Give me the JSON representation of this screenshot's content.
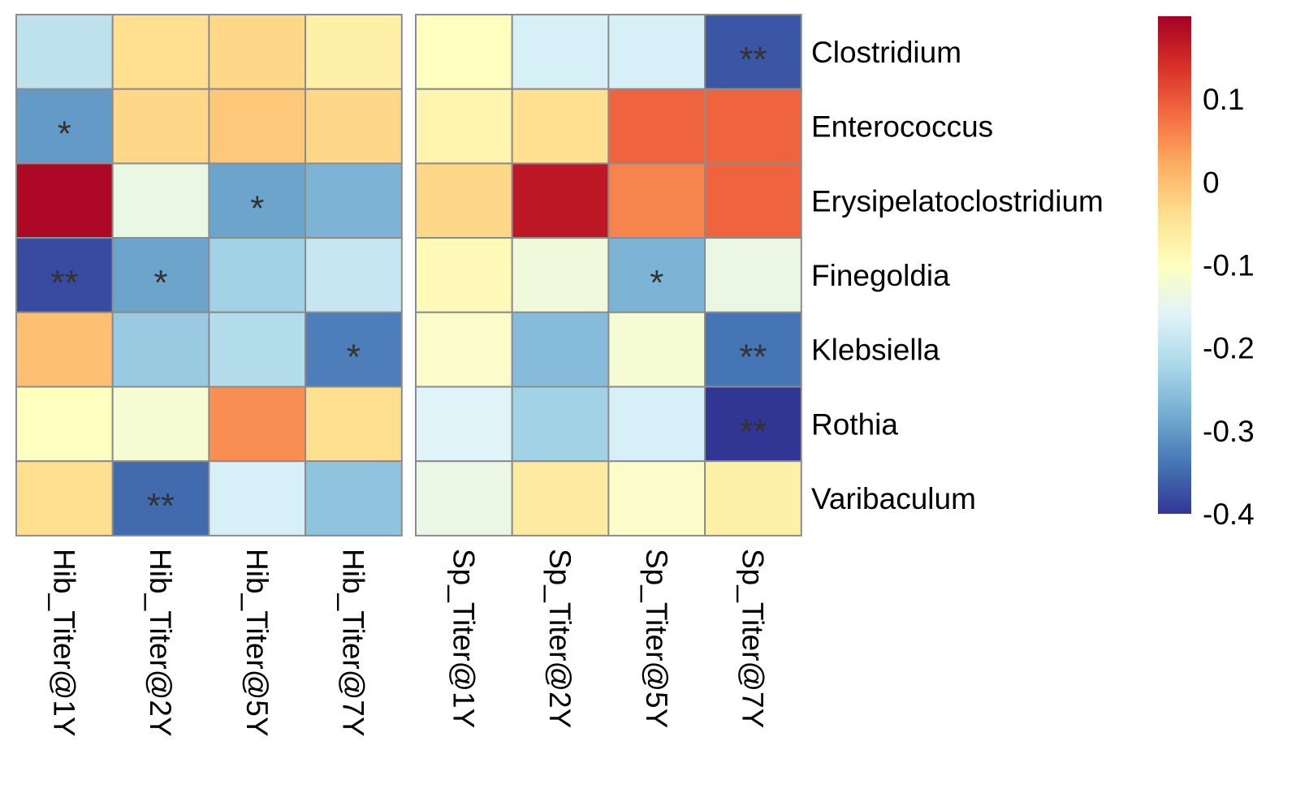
{
  "chart_data": {
    "type": "heatmap",
    "title": "",
    "rows": [
      "Clostridium",
      "Enterococcus",
      "Erysipelatoclostridium",
      "Finegoldia",
      "Klebsiella",
      "Rothia",
      "Varibaculum"
    ],
    "column_groups": [
      {
        "columns": [
          "Hib_Titer@1Y",
          "Hib_Titer@2Y",
          "Hib_Titer@5Y",
          "Hib_Titer@7Y"
        ],
        "values": [
          [
            -0.2,
            -0.04,
            -0.03,
            -0.07
          ],
          [
            -0.3,
            -0.03,
            -0.01,
            -0.03
          ],
          [
            0.19,
            -0.14,
            -0.29,
            -0.27
          ],
          [
            -0.38,
            -0.29,
            -0.23,
            -0.19
          ],
          [
            0.0,
            -0.24,
            -0.21,
            -0.33
          ],
          [
            -0.1,
            -0.12,
            0.05,
            -0.04
          ],
          [
            -0.04,
            -0.35,
            -0.17,
            -0.25
          ]
        ],
        "significance": [
          [
            "",
            "",
            "",
            ""
          ],
          [
            "*",
            "",
            "",
            ""
          ],
          [
            "",
            "",
            "*",
            ""
          ],
          [
            "**",
            "*",
            "",
            ""
          ],
          [
            "",
            "",
            "",
            "*"
          ],
          [
            "",
            "",
            "",
            ""
          ],
          [
            "",
            "**",
            "",
            ""
          ]
        ]
      },
      {
        "columns": [
          "Sp_Titer@1Y",
          "Sp_Titer@2Y",
          "Sp_Titer@5Y",
          "Sp_Titer@7Y"
        ],
        "values": [
          [
            -0.1,
            -0.17,
            -0.17,
            -0.37
          ],
          [
            -0.08,
            -0.04,
            0.09,
            0.09
          ],
          [
            -0.03,
            0.17,
            0.06,
            0.09
          ],
          [
            -0.09,
            -0.13,
            -0.27,
            -0.14
          ],
          [
            -0.11,
            -0.26,
            -0.12,
            -0.34
          ],
          [
            -0.16,
            -0.23,
            -0.17,
            -0.4
          ],
          [
            -0.14,
            -0.06,
            -0.11,
            -0.07
          ]
        ],
        "significance": [
          [
            "",
            "",
            "",
            "**"
          ],
          [
            "",
            "",
            "",
            ""
          ],
          [
            "",
            "",
            "",
            ""
          ],
          [
            "",
            "",
            "*",
            ""
          ],
          [
            "",
            "",
            "",
            "**"
          ],
          [
            "",
            "",
            "",
            "**"
          ],
          [
            "",
            "",
            "",
            ""
          ]
        ]
      }
    ],
    "colorbar": {
      "min": -0.4,
      "max": 0.2,
      "ticks": [
        0.1,
        0,
        -0.1,
        -0.2,
        -0.3,
        -0.4
      ],
      "tick_labels": [
        "0.1",
        "0",
        "-0.1",
        "-0.2",
        "-0.3",
        "-0.4"
      ],
      "colors": [
        "#313695",
        "#4575b4",
        "#74add1",
        "#abd9e9",
        "#e0f3f8",
        "#ffffbf",
        "#fee090",
        "#fdae61",
        "#f46d43",
        "#d73027",
        "#a50026"
      ]
    },
    "grid_color": "#8c8c8c",
    "legend_position": "right"
  }
}
